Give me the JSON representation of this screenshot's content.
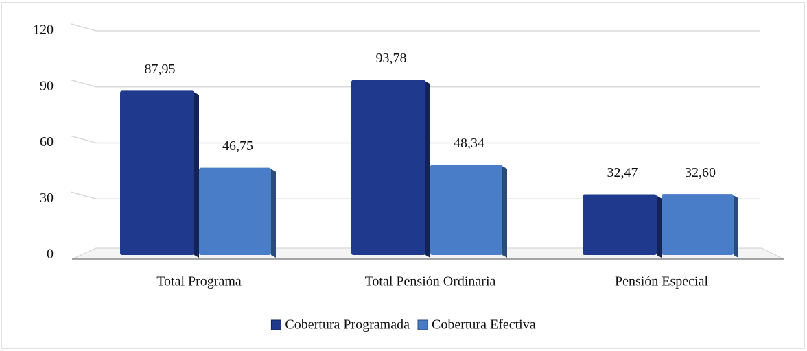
{
  "chart_data": {
    "type": "bar",
    "categories": [
      "Total Programa",
      "Total Pensión Ordinaria",
      "Pensión Especial"
    ],
    "series": [
      {
        "name": "Cobertura Programada",
        "color": "#1f3a8c",
        "values": [
          87.95,
          93.78,
          32.47
        ],
        "value_labels": [
          "87,95",
          "93,78",
          "32,47"
        ]
      },
      {
        "name": "Cobertura Efectiva",
        "color": "#4a7dc8",
        "values": [
          46.75,
          48.34,
          32.6
        ],
        "value_labels": [
          "46,75",
          "48,34",
          "32,60"
        ]
      }
    ],
    "ylim": [
      0,
      120
    ],
    "yticks": [
      0,
      30,
      60,
      90,
      120
    ],
    "grid": true,
    "legend": "bottom"
  }
}
